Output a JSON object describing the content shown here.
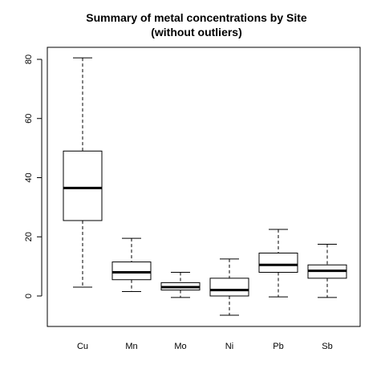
{
  "chart_data": {
    "type": "boxplot",
    "title": "Summary of metal concentrations by Site",
    "subtitle": "(without outliers)",
    "xlabel": "",
    "ylabel": "",
    "categories": [
      "Cu",
      "Mn",
      "Mo",
      "Ni",
      "Pb",
      "Sb"
    ],
    "boxes": [
      {
        "name": "Cu",
        "low": 3,
        "q1": 25.5,
        "median": 36.5,
        "q3": 49,
        "high": 80.5
      },
      {
        "name": "Mn",
        "low": 1.5,
        "q1": 5.5,
        "median": 8,
        "q3": 11.5,
        "high": 19.5
      },
      {
        "name": "Mo",
        "low": -0.5,
        "q1": 2,
        "median": 3,
        "q3": 4.5,
        "high": 8
      },
      {
        "name": "Ni",
        "low": -6.5,
        "q1": 0,
        "median": 2,
        "q3": 6,
        "high": 12.5
      },
      {
        "name": "Pb",
        "low": -0.3,
        "q1": 8,
        "median": 10.5,
        "q3": 14.5,
        "high": 22.5
      },
      {
        "name": "Sb",
        "low": -0.5,
        "q1": 6,
        "median": 8.5,
        "q3": 10.5,
        "high": 17.5
      }
    ],
    "yticks": [
      0,
      20,
      40,
      60,
      80
    ],
    "ylim": [
      -10,
      84
    ],
    "grid": false,
    "legend": "none",
    "colors": {
      "stroke": "#000000",
      "box_fill": "#ffffff"
    }
  }
}
